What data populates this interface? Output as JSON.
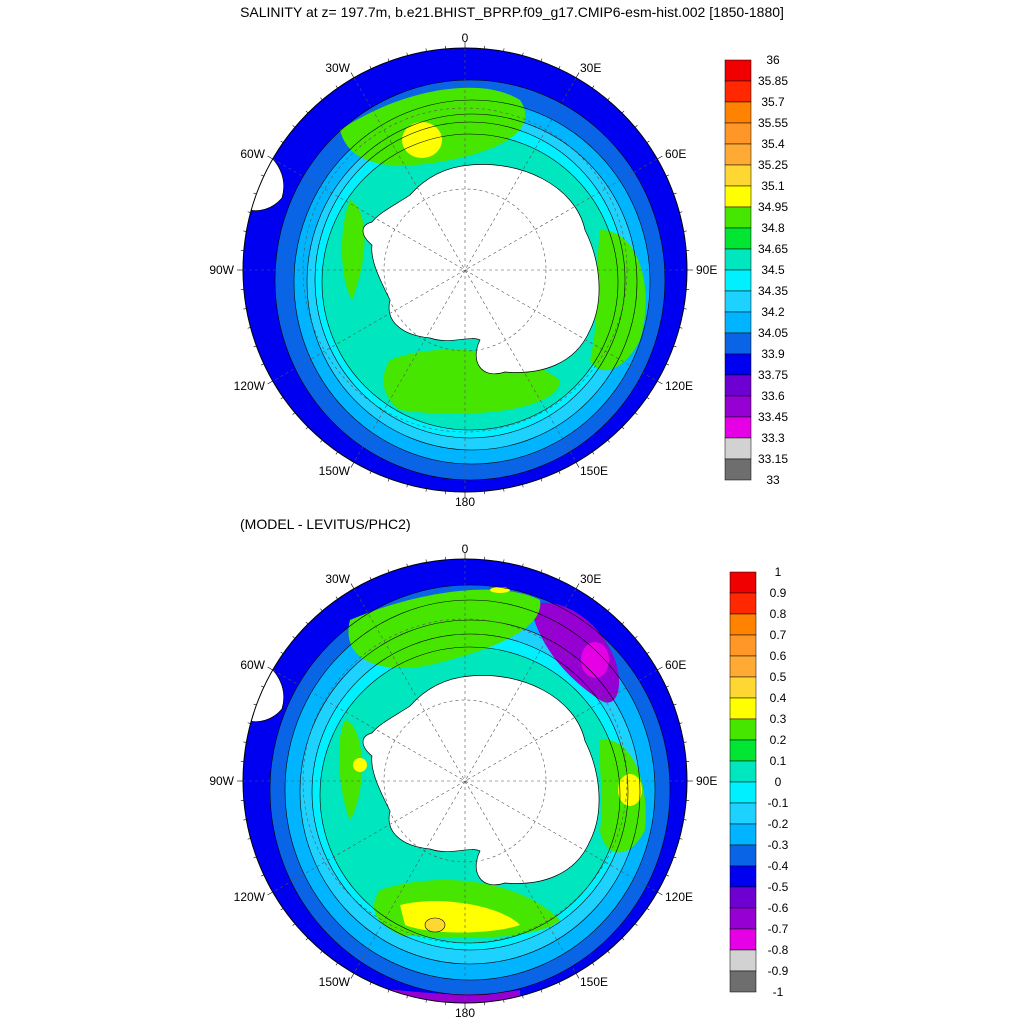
{
  "top_panel": {
    "title": "SALINITY at z= 197.7m, b.e21.BHIST_BPRP.f09_g17.CMIP6-esm-hist.002 [1850-1880]",
    "colorbar_labels": [
      "36",
      "35.85",
      "35.7",
      "35.55",
      "35.4",
      "35.25",
      "35.1",
      "34.95",
      "34.8",
      "34.65",
      "34.5",
      "34.35",
      "34.2",
      "34.05",
      "33.9",
      "33.75",
      "33.6",
      "33.45",
      "33.3",
      "33.15",
      "33"
    ]
  },
  "bottom_panel": {
    "title": "(MODEL - LEVITUS/PHC2)",
    "colorbar_labels": [
      "1",
      "0.9",
      "0.8",
      "0.7",
      "0.6",
      "0.5",
      "0.4",
      "0.3",
      "0.2",
      "0.1",
      "0",
      "-0.1",
      "-0.2",
      "-0.3",
      "-0.4",
      "-0.5",
      "-0.6",
      "-0.7",
      "-0.8",
      "-0.9",
      "-1"
    ]
  },
  "longitude_labels": {
    "deg0": "0",
    "e30": "30E",
    "e60": "60E",
    "e90": "90E",
    "e120": "120E",
    "e150": "150E",
    "deg180": "180",
    "w150": "150W",
    "w120": "120W",
    "w90": "90W",
    "w60": "60W",
    "w30": "30W"
  },
  "colors": {
    "palette": [
      "#6e6e6e",
      "#d2d2d2",
      "#e600e6",
      "#9600d2",
      "#6e00d2",
      "#0000f0",
      "#0a64e6",
      "#00b4ff",
      "#1ed2ff",
      "#00f0ff",
      "#00e6be",
      "#00e632",
      "#46e600",
      "#ffff00",
      "#ffd732",
      "#ffaa32",
      "#ff9628",
      "#ff8200",
      "#ff2800",
      "#f00000",
      "#be0000"
    ],
    "land": "#ffffff"
  }
}
